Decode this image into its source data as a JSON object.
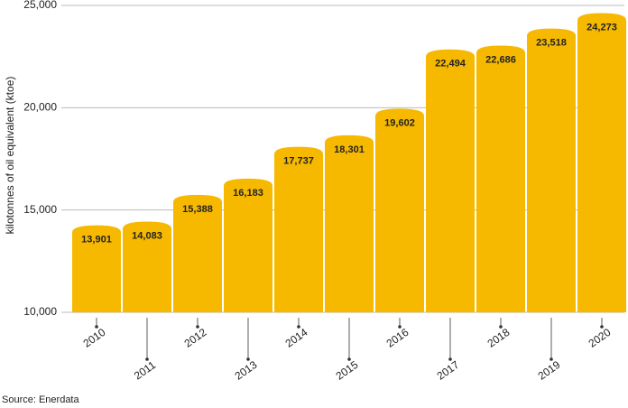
{
  "chart_data": {
    "type": "bar",
    "y_label": "kilotonnes of oil equivalent (ktoe)",
    "source": "Source: Enerdata",
    "categories": [
      "2010",
      "2011",
      "2012",
      "2013",
      "2014",
      "2015",
      "2016",
      "2017",
      "2018",
      "2019",
      "2020"
    ],
    "values": [
      13901,
      14083,
      15388,
      16183,
      17737,
      18301,
      19602,
      22494,
      22686,
      23518,
      24273
    ],
    "value_labels": [
      "13,901",
      "14,083",
      "15,388",
      "16,183",
      "17,737",
      "18,301",
      "19,602",
      "22,494",
      "22,686",
      "23,518",
      "24,273"
    ],
    "color": "#f6b900",
    "ylim": [
      10000,
      25000
    ],
    "yticks": [
      {
        "value": 10000,
        "label": "10,000"
      },
      {
        "value": 15000,
        "label": "15,000"
      },
      {
        "value": 20000,
        "label": "20,000"
      },
      {
        "value": 25000,
        "label": "25,000"
      }
    ],
    "grid": true
  }
}
